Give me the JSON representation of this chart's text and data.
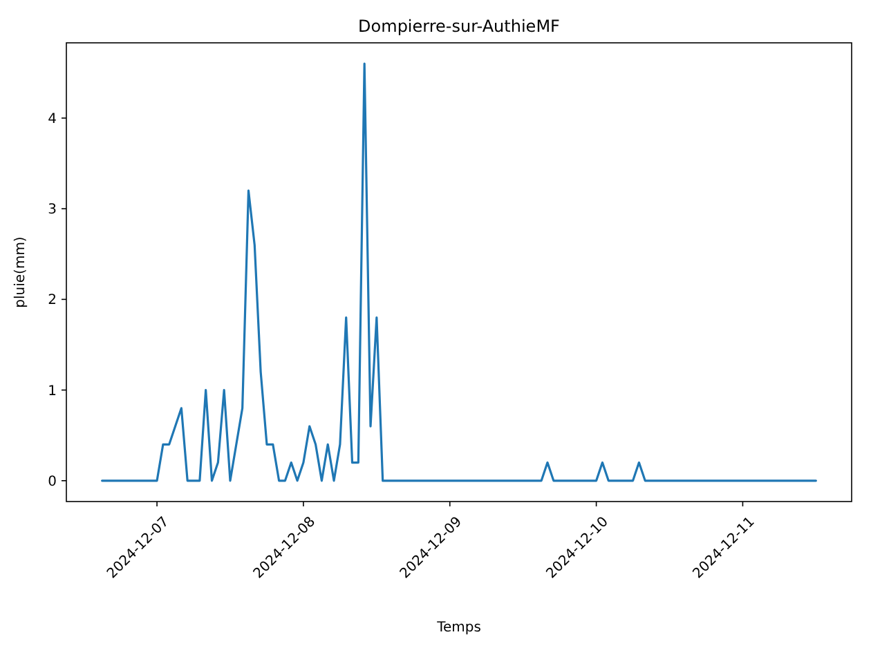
{
  "chart_data": {
    "type": "line",
    "title": "Dompierre-sur-AuthieMF",
    "xlabel": "Temps",
    "ylabel": "pluie(mm)",
    "x": [
      "2024-12-06T15:00",
      "2024-12-06T16:00",
      "2024-12-06T17:00",
      "2024-12-06T18:00",
      "2024-12-06T19:00",
      "2024-12-06T20:00",
      "2024-12-06T21:00",
      "2024-12-06T22:00",
      "2024-12-06T23:00",
      "2024-12-07T00:00",
      "2024-12-07T01:00",
      "2024-12-07T02:00",
      "2024-12-07T03:00",
      "2024-12-07T04:00",
      "2024-12-07T05:00",
      "2024-12-07T06:00",
      "2024-12-07T07:00",
      "2024-12-07T08:00",
      "2024-12-07T09:00",
      "2024-12-07T10:00",
      "2024-12-07T11:00",
      "2024-12-07T12:00",
      "2024-12-07T13:00",
      "2024-12-07T14:00",
      "2024-12-07T15:00",
      "2024-12-07T16:00",
      "2024-12-07T17:00",
      "2024-12-07T18:00",
      "2024-12-07T19:00",
      "2024-12-07T20:00",
      "2024-12-07T21:00",
      "2024-12-07T22:00",
      "2024-12-07T23:00",
      "2024-12-08T00:00",
      "2024-12-08T01:00",
      "2024-12-08T02:00",
      "2024-12-08T03:00",
      "2024-12-08T04:00",
      "2024-12-08T05:00",
      "2024-12-08T06:00",
      "2024-12-08T07:00",
      "2024-12-08T08:00",
      "2024-12-08T09:00",
      "2024-12-08T10:00",
      "2024-12-08T11:00",
      "2024-12-08T12:00",
      "2024-12-08T13:00",
      "2024-12-08T14:00",
      "2024-12-08T15:00",
      "2024-12-08T16:00",
      "2024-12-08T17:00",
      "2024-12-08T18:00",
      "2024-12-08T19:00",
      "2024-12-08T20:00",
      "2024-12-08T21:00",
      "2024-12-08T22:00",
      "2024-12-08T23:00",
      "2024-12-09T00:00",
      "2024-12-09T01:00",
      "2024-12-09T02:00",
      "2024-12-09T03:00",
      "2024-12-09T04:00",
      "2024-12-09T05:00",
      "2024-12-09T06:00",
      "2024-12-09T07:00",
      "2024-12-09T08:00",
      "2024-12-09T09:00",
      "2024-12-09T10:00",
      "2024-12-09T11:00",
      "2024-12-09T12:00",
      "2024-12-09T13:00",
      "2024-12-09T14:00",
      "2024-12-09T15:00",
      "2024-12-09T16:00",
      "2024-12-09T17:00",
      "2024-12-09T18:00",
      "2024-12-09T19:00",
      "2024-12-09T20:00",
      "2024-12-09T21:00",
      "2024-12-09T22:00",
      "2024-12-09T23:00",
      "2024-12-10T00:00",
      "2024-12-10T01:00",
      "2024-12-10T02:00",
      "2024-12-10T03:00",
      "2024-12-10T04:00",
      "2024-12-10T05:00",
      "2024-12-10T06:00",
      "2024-12-10T07:00",
      "2024-12-10T08:00",
      "2024-12-10T09:00",
      "2024-12-10T10:00",
      "2024-12-10T11:00",
      "2024-12-10T12:00",
      "2024-12-10T13:00",
      "2024-12-10T14:00",
      "2024-12-10T15:00",
      "2024-12-10T16:00",
      "2024-12-10T17:00",
      "2024-12-10T18:00",
      "2024-12-10T19:00",
      "2024-12-10T20:00",
      "2024-12-10T21:00",
      "2024-12-10T22:00",
      "2024-12-10T23:00",
      "2024-12-11T00:00",
      "2024-12-11T01:00",
      "2024-12-11T02:00",
      "2024-12-11T03:00",
      "2024-12-11T04:00",
      "2024-12-11T05:00",
      "2024-12-11T06:00",
      "2024-12-11T07:00",
      "2024-12-11T08:00",
      "2024-12-11T09:00",
      "2024-12-11T10:00",
      "2024-12-11T11:00",
      "2024-12-11T12:00"
    ],
    "series": [
      {
        "color": "#1f77b4",
        "values": [
          0,
          0,
          0,
          0,
          0,
          0,
          0,
          0,
          0,
          0,
          0.4,
          0.4,
          0.6,
          0.8,
          0,
          0,
          0,
          1.0,
          0,
          0.2,
          1.0,
          0,
          0.4,
          0.8,
          3.2,
          2.6,
          1.2,
          0.4,
          0.4,
          0,
          0,
          0.2,
          0,
          0.2,
          0.6,
          0.4,
          0,
          0.4,
          0,
          0.4,
          1.8,
          0.2,
          0.2,
          4.6,
          0.6,
          1.8,
          0,
          0,
          0,
          0,
          0,
          0,
          0,
          0,
          0,
          0,
          0,
          0,
          0,
          0,
          0,
          0,
          0,
          0,
          0,
          0,
          0,
          0,
          0,
          0,
          0,
          0,
          0,
          0.2,
          0,
          0,
          0,
          0,
          0,
          0,
          0,
          0,
          0.2,
          0,
          0,
          0,
          0,
          0,
          0.2,
          0,
          0,
          0,
          0,
          0,
          0,
          0,
          0,
          0,
          0,
          0,
          0,
          0,
          0,
          0,
          0,
          0,
          0,
          0,
          0,
          0,
          0,
          0,
          0,
          0,
          0,
          0,
          0,
          0
        ]
      }
    ],
    "xlim": [
      "2024-12-06T09:09",
      "2024-12-11T17:51"
    ],
    "xticks": [
      "2024-12-07",
      "2024-12-08",
      "2024-12-09",
      "2024-12-10",
      "2024-12-11"
    ],
    "ylim": [
      -0.23,
      4.83
    ],
    "yticks": [
      0,
      1,
      2,
      3,
      4
    ],
    "grid": false,
    "line_style": "solid"
  }
}
